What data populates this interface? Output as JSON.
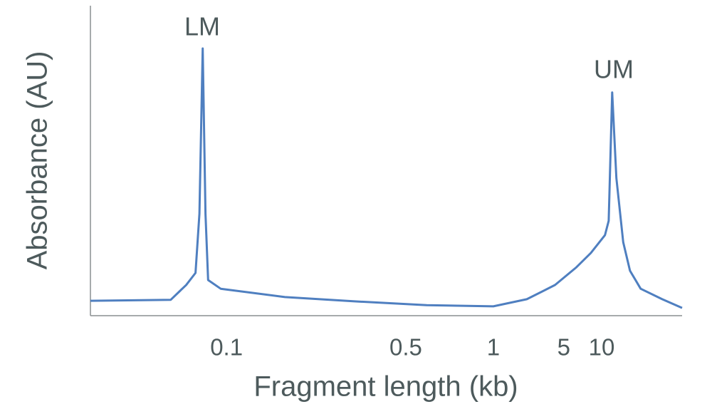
{
  "chart_data": {
    "type": "line",
    "x_label": "Fragment length (kb)",
    "y_label": "Absorbance (AU)",
    "annotations": [
      "LM",
      "UM"
    ],
    "x": [
      0.03,
      0.061,
      0.07,
      0.076,
      0.0787,
      0.081,
      0.083,
      0.085,
      0.095,
      0.169,
      0.32,
      0.59,
      1,
      2.15,
      4.1,
      6.3,
      8.2,
      10.6,
      11.3,
      12.0,
      12.9,
      14.5,
      16.3,
      19.6,
      28.4,
      40
    ],
    "series": [
      {
        "name": "Absorbance",
        "color": "#4f7fc0",
        "values": [
          4.8,
          5.1,
          9.9,
          13.8,
          32.9,
          86.2,
          32.9,
          11.5,
          8.7,
          6.0,
          4.6,
          3.4,
          3.0,
          5.3,
          9.9,
          15.6,
          20.2,
          26.0,
          30.6,
          72.0,
          44.4,
          23.7,
          14.5,
          8.7,
          5.3,
          2.5
        ]
      }
    ],
    "xlim": [
      0.03,
      40
    ],
    "xticks": [
      0.1,
      0.5,
      1,
      5,
      10
    ],
    "ylim": [
      0,
      100
    ]
  }
}
